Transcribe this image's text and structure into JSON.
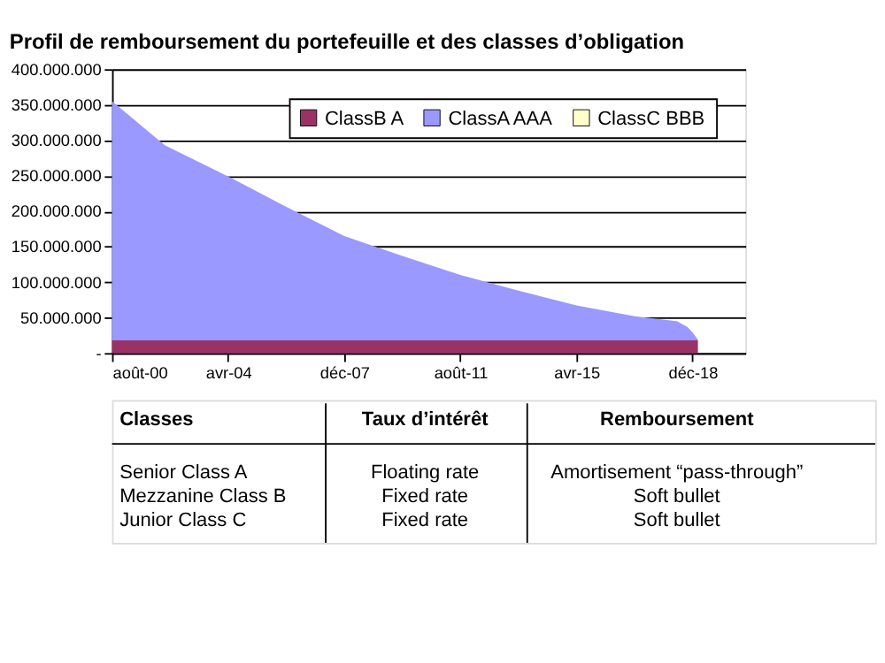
{
  "chart_data": {
    "type": "area",
    "title": "Profil de remboursement du portefeuille et des classes d’obligation",
    "stacked": true,
    "x": [
      "2000-08",
      "2002-04",
      "2004-04",
      "2006-02",
      "2007-12",
      "2009-10",
      "2011-08",
      "2013-06",
      "2015-04",
      "2017-02",
      "2018-06",
      "2018-10",
      "2018-12",
      "2019-02"
    ],
    "series": [
      {
        "name": "ClassB A",
        "color": "#993366",
        "values": [
          18000000,
          18000000,
          18000000,
          18000000,
          18000000,
          18000000,
          18000000,
          18000000,
          18000000,
          18000000,
          18000000,
          18000000,
          18000000,
          18000000
        ]
      },
      {
        "name": "ClassA AAA",
        "color": "#9999ff",
        "values": [
          337000000,
          275000000,
          231000000,
          188000000,
          147000000,
          119000000,
          92000000,
          70000000,
          49000000,
          34000000,
          27000000,
          19000000,
          11000000,
          1000000
        ]
      },
      {
        "name": "ClassC BBB",
        "color": "#ffffcc",
        "values": [
          null,
          null,
          null,
          null,
          null,
          null,
          null,
          null,
          null,
          null,
          null,
          null,
          null,
          null
        ]
      }
    ],
    "xlim": [
      "2000-08",
      "2020-08"
    ],
    "xticks": [
      {
        "value": "2000-08",
        "label": "août-00"
      },
      {
        "value": "2004-04",
        "label": "avr-04"
      },
      {
        "value": "2007-12",
        "label": "déc-07"
      },
      {
        "value": "2011-08",
        "label": "août-11"
      },
      {
        "value": "2015-04",
        "label": "avr-15"
      },
      {
        "value": "2018-12",
        "label": "déc-18"
      }
    ],
    "ylim": [
      0,
      400000000
    ],
    "yticks": [
      {
        "value": 0,
        "label": "-"
      },
      {
        "value": 50000000,
        "label": "50.000.000"
      },
      {
        "value": 100000000,
        "label": "100.000.000"
      },
      {
        "value": 150000000,
        "label": "150.000.000"
      },
      {
        "value": 200000000,
        "label": "200.000.000"
      },
      {
        "value": 250000000,
        "label": "250.000.000"
      },
      {
        "value": 300000000,
        "label": "300.000.000"
      },
      {
        "value": 350000000,
        "label": "350.000.000"
      },
      {
        "value": 400000000,
        "label": "400.000.000"
      }
    ],
    "grid": "y",
    "legend": "top right",
    "annotations": [
      "Classes",
      "Taux d’intérêt",
      "Remboursement",
      "Senior Class A",
      "Floating rate",
      "Amortisement “pass-through”",
      "Mezzanine Class B",
      "Fixed rate",
      "Soft bullet",
      "Junior Class C",
      "Fixed rate",
      "Soft bullet"
    ]
  }
}
